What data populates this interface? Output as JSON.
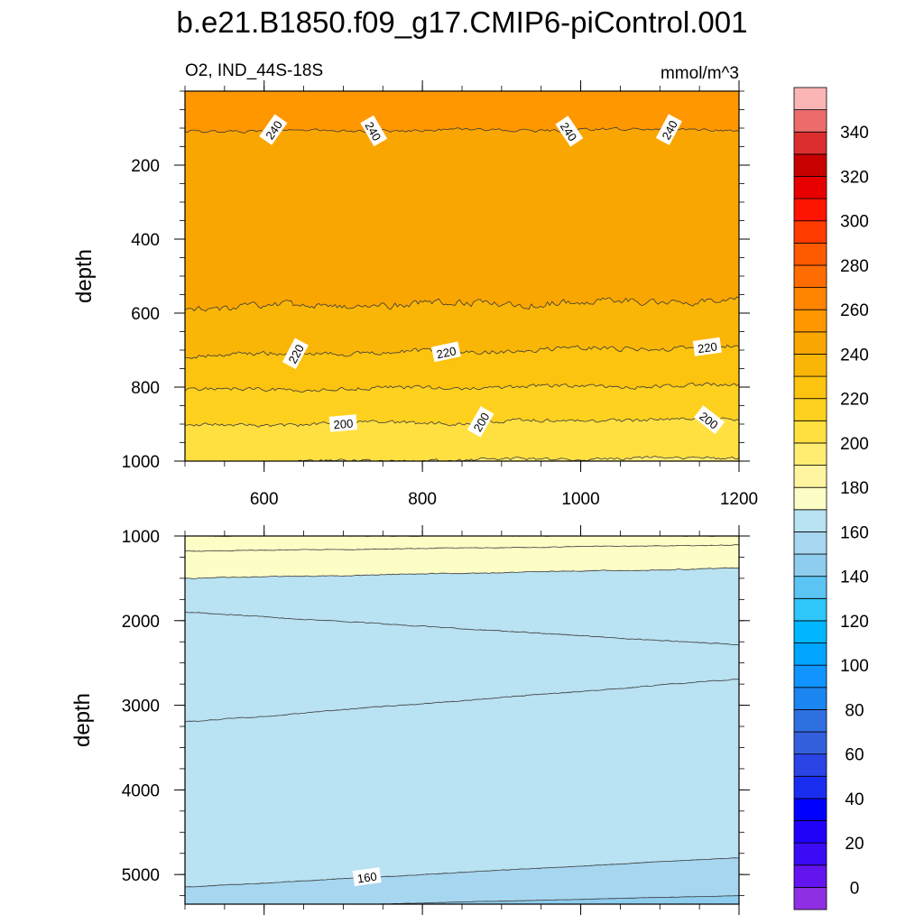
{
  "chart_data": {
    "type": "contour",
    "title": "b.e21.B1850.f09_g17.CMIP6-piControl.001",
    "variable_label": "O2, IND_44S-18S",
    "units_label": "mmol/m^3",
    "x_range": [
      500,
      1200
    ],
    "x_ticks": [
      600,
      800,
      1000,
      1200
    ],
    "top_panel": {
      "ylabel": "depth",
      "y_range": [
        0,
        1000
      ],
      "y_ticks": [
        200,
        400,
        600,
        800,
        1000
      ],
      "contours": [
        {
          "value": 245,
          "depth_start": 108,
          "depth_end": 103,
          "noise": 6,
          "labels": [
            {
              "x": 612,
              "text": "240"
            },
            {
              "x": 738,
              "text": "240"
            },
            {
              "x": 985,
              "text": "240"
            },
            {
              "x": 1112,
              "text": "240"
            }
          ]
        },
        {
          "value": 235,
          "depth_start": 585,
          "depth_end": 565,
          "noise": 14,
          "labels": []
        },
        {
          "value": 225,
          "depth_start": 715,
          "depth_end": 690,
          "noise": 10,
          "labels": [
            {
              "x": 640,
              "text": "220"
            },
            {
              "x": 830,
              "text": "220"
            },
            {
              "x": 1160,
              "text": "220"
            }
          ]
        },
        {
          "value": 215,
          "depth_start": 808,
          "depth_end": 795,
          "noise": 8,
          "labels": []
        },
        {
          "value": 205,
          "depth_start": 905,
          "depth_end": 885,
          "noise": 8,
          "labels": [
            {
              "x": 700,
              "text": "200"
            },
            {
              "x": 874,
              "text": "200"
            },
            {
              "x": 1162,
              "text": "200"
            }
          ]
        },
        {
          "value": 195,
          "depth_start": 1005,
          "depth_end": 990,
          "noise": 7,
          "labels": []
        }
      ]
    },
    "bottom_panel": {
      "ylabel": "depth",
      "y_range": [
        1000,
        5350
      ],
      "y_ticks": [
        1000,
        2000,
        3000,
        4000,
        5000
      ],
      "contours": [
        {
          "value": 175,
          "depth_start": 1000,
          "depth_end": 1000,
          "noise": 4,
          "labels": []
        },
        {
          "value": 175,
          "depth_start": 1180,
          "depth_end": 1105,
          "noise": 6,
          "labels": []
        },
        {
          "value": 165,
          "depth_start": 1500,
          "depth_end": 1380,
          "noise": 8,
          "labels": []
        },
        {
          "value": 165,
          "depth_start": 1900,
          "depth_end": 2290,
          "noise": 8,
          "labels": []
        },
        {
          "value": 165,
          "depth_start": 3200,
          "depth_end": 2690,
          "noise": 8,
          "labels": []
        },
        {
          "value": 155,
          "depth_start": 5150,
          "depth_end": 4800,
          "noise": 5,
          "labels": [
            {
              "x": 730,
              "text": "160"
            }
          ]
        },
        {
          "value": 145,
          "depth_start": 5400,
          "depth_end": 5250,
          "noise": 3,
          "labels": []
        }
      ]
    },
    "colorbar": {
      "levels": [
        0,
        10,
        20,
        30,
        40,
        50,
        60,
        70,
        80,
        90,
        100,
        110,
        120,
        130,
        140,
        150,
        160,
        170,
        180,
        190,
        200,
        210,
        220,
        230,
        240,
        250,
        260,
        270,
        280,
        290,
        300,
        310,
        320,
        330,
        340,
        350
      ],
      "tick_labels": [
        "0",
        "20",
        "40",
        "60",
        "80",
        "100",
        "120",
        "140",
        "160",
        "180",
        "200",
        "220",
        "240",
        "260",
        "280",
        "300",
        "320",
        "340"
      ],
      "colors": [
        "#8f2fe3",
        "#6414ef",
        "#3c0bf5",
        "#1f00f8",
        "#0000ff",
        "#1a2ef2",
        "#2b44e6",
        "#3560dd",
        "#2f70e0",
        "#1c86f0",
        "#1194ff",
        "#00a5ff",
        "#00b6ff",
        "#2fc6f9",
        "#5cc4f2",
        "#8ecdee",
        "#a6d6f0",
        "#b9e2f2",
        "#fdfdc6",
        "#fff5a0",
        "#ffec72",
        "#ffe040",
        "#ffd11f",
        "#fcc30f",
        "#fab606",
        "#faa600",
        "#ff9700",
        "#ff8400",
        "#ff6d00",
        "#ff5a00",
        "#ff3b00",
        "#ff1400",
        "#e80000",
        "#c90000",
        "#dc2e2e",
        "#ec6c6c",
        "#fbb5b5"
      ]
    }
  }
}
